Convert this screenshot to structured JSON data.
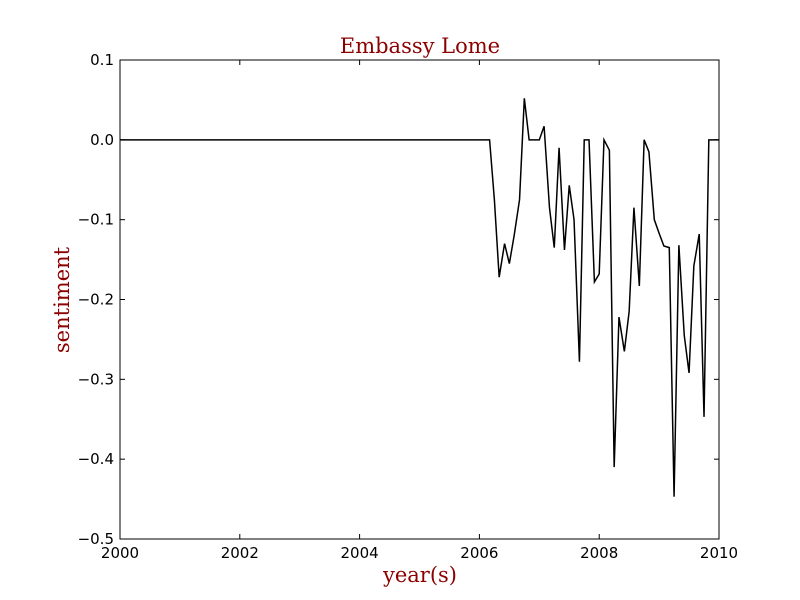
{
  "chart_data": {
    "type": "line",
    "title": "Embassy Lome",
    "xlabel": "year(s)",
    "ylabel": "sentiment",
    "xlim": [
      2000,
      2010
    ],
    "ylim": [
      -0.5,
      0.1
    ],
    "x_ticks": [
      2000,
      2002,
      2004,
      2006,
      2008,
      2010
    ],
    "x_tick_labels": [
      "2000",
      "2002",
      "2004",
      "2006",
      "2008",
      "2010"
    ],
    "y_ticks": [
      0.1,
      0.0,
      -0.1,
      -0.2,
      -0.3,
      -0.4,
      -0.5
    ],
    "y_tick_labels": [
      "0.1",
      "0.0",
      "−0.1",
      "−0.2",
      "−0.3",
      "−0.4",
      "−0.5"
    ],
    "grid": false,
    "colors": {
      "title": "#8b0000",
      "axis_labels": "#8b0000",
      "line": "#000000"
    },
    "series": [
      {
        "x": [
          2000.0,
          2006.17,
          2006.25,
          2006.33,
          2006.42,
          2006.5,
          2006.58,
          2006.67,
          2006.75,
          2006.83,
          2006.92,
          2007.0,
          2007.08,
          2007.17,
          2007.25,
          2007.33,
          2007.42,
          2007.5,
          2007.58,
          2007.67,
          2007.75,
          2007.83,
          2007.92,
          2008.0,
          2008.08,
          2008.17,
          2008.25,
          2008.33,
          2008.42,
          2008.5,
          2008.58,
          2008.67,
          2008.75,
          2008.83,
          2008.92,
          2009.0,
          2009.08,
          2009.17,
          2009.25,
          2009.33,
          2009.42,
          2009.5,
          2009.58,
          2009.67,
          2009.75,
          2009.83,
          2009.92,
          2010.0
        ],
        "values": [
          0.0,
          0.0,
          -0.075,
          -0.172,
          -0.13,
          -0.155,
          -0.12,
          -0.075,
          0.052,
          0.0,
          0.0,
          0.0,
          0.017,
          -0.085,
          -0.135,
          -0.01,
          -0.138,
          -0.057,
          -0.1,
          -0.278,
          0.0,
          0.0,
          -0.178,
          -0.168,
          0.0,
          -0.013,
          -0.41,
          -0.222,
          -0.265,
          -0.215,
          -0.085,
          -0.183,
          0.0,
          -0.015,
          -0.1,
          -0.117,
          -0.133,
          -0.135,
          -0.447,
          -0.132,
          -0.245,
          -0.292,
          -0.158,
          -0.118,
          -0.347,
          0.0,
          0.0,
          0.0
        ]
      }
    ]
  }
}
